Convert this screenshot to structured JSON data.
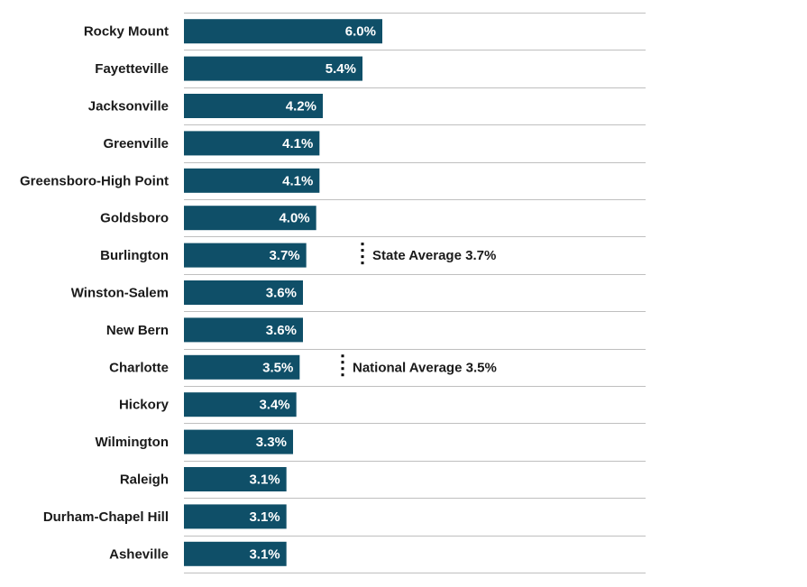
{
  "chart_data": {
    "type": "bar",
    "orientation": "horizontal",
    "categories": [
      "Rocky Mount",
      "Fayetteville",
      "Jacksonville",
      "Greenville",
      "Greensboro-High Point",
      "Goldsboro",
      "Burlington",
      "Winston-Salem",
      "New Bern",
      "Charlotte",
      "Hickory",
      "Wilmington",
      "Raleigh",
      "Durham-Chapel Hill",
      "Asheville"
    ],
    "values": [
      6.0,
      5.4,
      4.2,
      4.1,
      4.1,
      4.0,
      3.7,
      3.6,
      3.6,
      3.5,
      3.4,
      3.3,
      3.1,
      3.1,
      3.1
    ],
    "value_labels": [
      "6.0%",
      "5.4%",
      "4.2%",
      "4.1%",
      "4.1%",
      "4.0%",
      "3.7%",
      "3.6%",
      "3.6%",
      "3.5%",
      "3.4%",
      "3.3%",
      "3.1%",
      "3.1%",
      "3.1%"
    ],
    "reference_annotations": [
      {
        "text": "State Average 3.7%",
        "value": 3.7,
        "category": "Burlington"
      },
      {
        "text": "National Average 3.5%",
        "value": 3.5,
        "category": "Charlotte"
      }
    ],
    "bar_color": "#0f4f68",
    "title": "",
    "xlabel": "",
    "ylabel": "",
    "grid": true,
    "legend": "none"
  }
}
